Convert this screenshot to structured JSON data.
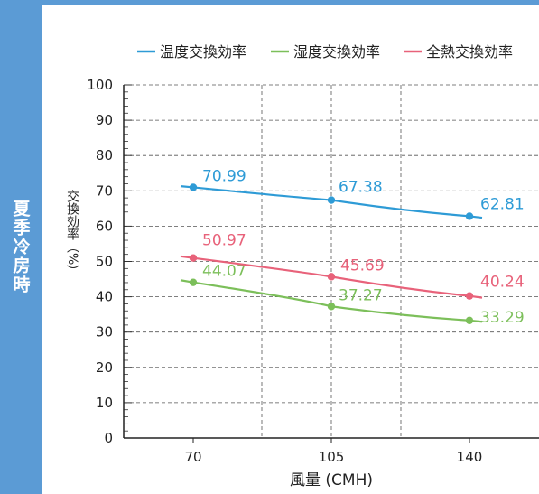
{
  "section_label": "夏季冷房時",
  "chart_data": {
    "type": "line",
    "xlabel": "風量 (CMH)",
    "ylabel": "交換効率（%）",
    "x": [
      70,
      105,
      140
    ],
    "x_ticks": [
      "70",
      "105",
      "140"
    ],
    "y_ticks": [
      "0",
      "10",
      "20",
      "30",
      "40",
      "50",
      "60",
      "70",
      "80",
      "90",
      "100"
    ],
    "ylim": [
      0,
      100
    ],
    "grid": true,
    "legend": "top",
    "series": [
      {
        "name": "温度交換効率",
        "color": "#2e9bd6",
        "values": [
          70.99,
          67.38,
          62.81
        ],
        "labels": [
          "70.99",
          "67.38",
          "62.81"
        ]
      },
      {
        "name": "湿度交換効率",
        "color": "#7cbf5a",
        "values": [
          44.07,
          37.27,
          33.29
        ],
        "labels": [
          "44.07",
          "37.27",
          "33.29"
        ]
      },
      {
        "name": "全熱交換効率",
        "color": "#e8627a",
        "values": [
          50.97,
          45.69,
          40.24
        ],
        "labels": [
          "50.97",
          "45.69",
          "40.24"
        ]
      }
    ]
  }
}
